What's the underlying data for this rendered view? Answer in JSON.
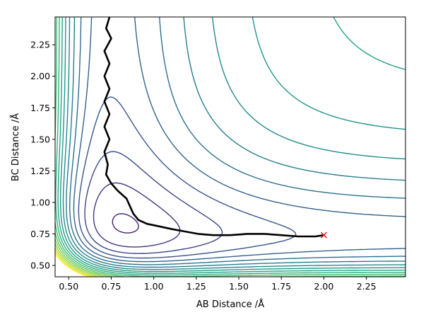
{
  "chart_data": {
    "type": "contour",
    "xlabel": "AB Distance /Å",
    "ylabel": "BC Distance /Å",
    "xlim": [
      0.42,
      2.48
    ],
    "ylim": [
      0.41,
      2.47
    ],
    "xticks": [
      "0.50",
      "0.75",
      "1.00",
      "1.25",
      "1.50",
      "1.75",
      "2.00",
      "2.25"
    ],
    "yticks": [
      "0.50",
      "0.75",
      "1.00",
      "1.25",
      "1.50",
      "1.75",
      "2.00",
      "2.25"
    ],
    "grid": false,
    "legend": "none",
    "colormap": "viridis",
    "colormap_colors": [
      "#440154",
      "#46327e",
      "#365c8d",
      "#277f8e",
      "#1fa187",
      "#4ac16d",
      "#a0da39",
      "#fde725"
    ],
    "contour_count": 20,
    "trajectory": {
      "color": "#000000",
      "points": [
        [
          0.74,
          2.47
        ],
        [
          0.72,
          2.38
        ],
        [
          0.75,
          2.3
        ],
        [
          0.71,
          2.2
        ],
        [
          0.74,
          2.1
        ],
        [
          0.71,
          2.0
        ],
        [
          0.74,
          1.9
        ],
        [
          0.71,
          1.8
        ],
        [
          0.74,
          1.7
        ],
        [
          0.71,
          1.6
        ],
        [
          0.74,
          1.5
        ],
        [
          0.71,
          1.4
        ],
        [
          0.73,
          1.3
        ],
        [
          0.72,
          1.22
        ],
        [
          0.75,
          1.15
        ],
        [
          0.79,
          1.09
        ],
        [
          0.84,
          1.03
        ],
        [
          0.86,
          0.97
        ],
        [
          0.88,
          0.91
        ],
        [
          0.91,
          0.86
        ],
        [
          0.96,
          0.83
        ],
        [
          1.03,
          0.81
        ],
        [
          1.1,
          0.79
        ],
        [
          1.18,
          0.77
        ],
        [
          1.26,
          0.75
        ],
        [
          1.35,
          0.74
        ],
        [
          1.45,
          0.74
        ],
        [
          1.55,
          0.75
        ],
        [
          1.65,
          0.75
        ],
        [
          1.75,
          0.74
        ],
        [
          1.85,
          0.73
        ],
        [
          1.95,
          0.73
        ],
        [
          2.0,
          0.74
        ]
      ]
    },
    "end_marker": {
      "x": 2.0,
      "y": 0.74,
      "symbol": "x",
      "color": "#d62728"
    }
  }
}
